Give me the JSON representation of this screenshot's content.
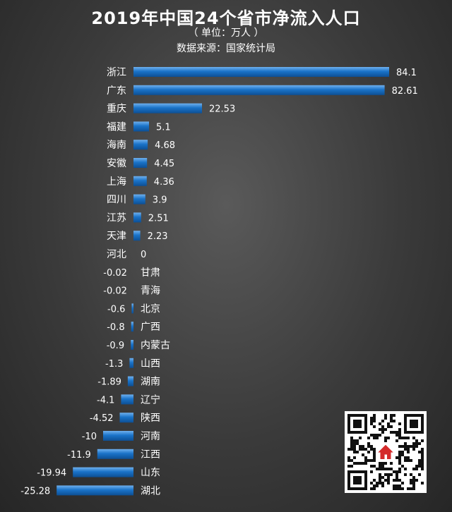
{
  "title": "2019年中国24个省市净流入人口",
  "subtitle": "（ 单位：万人 ）",
  "source": "数据来源：国家统计局",
  "colors": {
    "bar": "#1a73c8",
    "bar_highlight": "#6fb0ee",
    "background": "#3a3a3a",
    "text": "#ffffff"
  },
  "chart_data": {
    "type": "bar",
    "orientation": "horizontal",
    "title": "2019年中国24个省市净流入人口",
    "unit": "万人",
    "categories": [
      "浙江",
      "广东",
      "重庆",
      "福建",
      "海南",
      "安徽",
      "上海",
      "四川",
      "江苏",
      "天津",
      "河北",
      "甘肃",
      "青海",
      "北京",
      "广西",
      "内蒙古",
      "山西",
      "湖南",
      "辽宁",
      "陕西",
      "河南",
      "江西",
      "山东",
      "湖北"
    ],
    "values": [
      84.1,
      82.61,
      22.53,
      5.1,
      4.68,
      4.45,
      4.36,
      3.9,
      2.51,
      2.23,
      0,
      -0.02,
      -0.02,
      -0.6,
      -0.8,
      -0.9,
      -1.3,
      -1.89,
      -4.1,
      -4.52,
      -10,
      -11.9,
      -19.94,
      -25.28
    ],
    "value_labels": [
      "84.1",
      "82.61",
      "22.53",
      "5.1",
      "4.68",
      "4.45",
      "4.36",
      "3.9",
      "2.51",
      "2.23",
      "0",
      "-0.02",
      "-0.02",
      "-0.6",
      "-0.8",
      "-0.9",
      "-1.3",
      "-1.89",
      "-4.1",
      "-4.52",
      "-10",
      "-11.9",
      "-19.94",
      "-25.28"
    ],
    "xlim": [
      -25.28,
      84.1
    ],
    "grid": false,
    "legend": "none"
  },
  "qr": {
    "label": "二维码"
  }
}
